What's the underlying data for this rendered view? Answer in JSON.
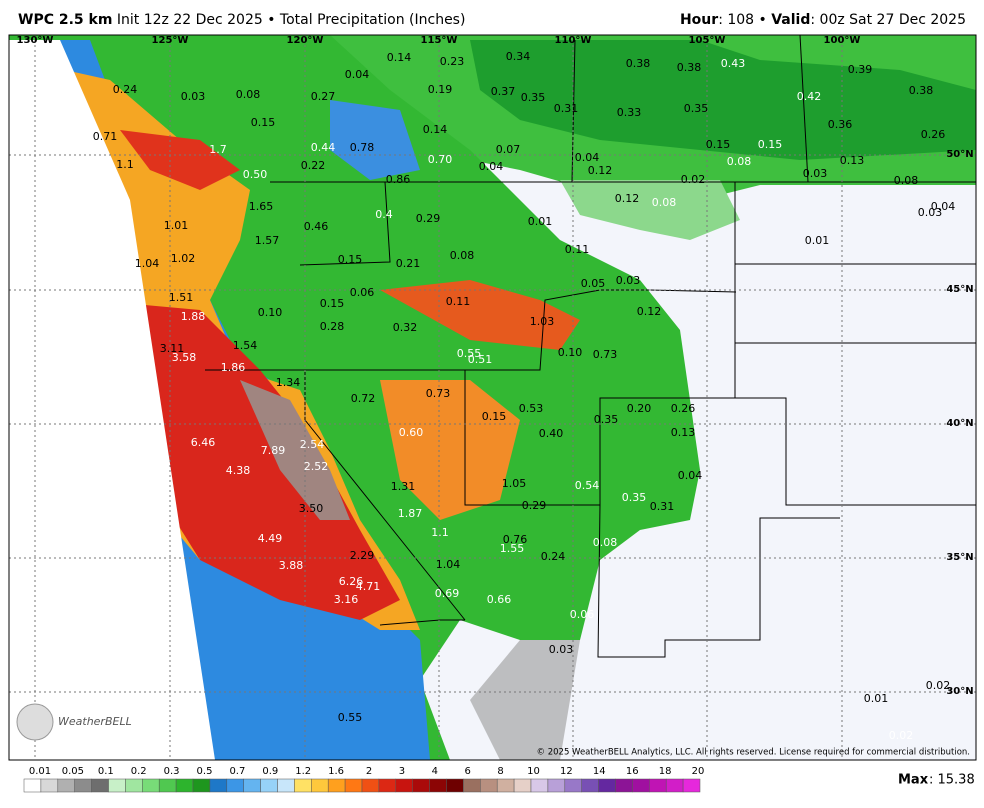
{
  "header": {
    "model": "WPC 2.5 km",
    "init": "Init 12z 22 Dec 2025 • Total Precipitation (Inches)",
    "hour_label": "Hour",
    "hour_value": ": 108 • ",
    "valid_label": "Valid",
    "valid_value": ": 00z Sat 27 Dec 2025"
  },
  "map": {
    "longitudes": [
      "130°W",
      "125°W",
      "120°W",
      "115°W",
      "110°W",
      "105°W",
      "100°W"
    ],
    "latitudes": [
      "50°N",
      "45°N",
      "40°N",
      "35°N",
      "30°N"
    ],
    "point_values": [
      "0.24",
      "0.03",
      "0.08",
      "0.04",
      "0.14",
      "0.23",
      "0.34",
      "0.38",
      "0.38",
      "0.43",
      "0.39",
      "0.27",
      "0.19",
      "0.37",
      "0.35",
      "0.31",
      "0.33",
      "0.35",
      "0.42",
      "0.38",
      "0.15",
      "0.14",
      "0.36",
      "0.26",
      "0.71",
      "1.7",
      "0.44",
      "0.78",
      "0.07",
      "0.15",
      "0.15",
      "0.70",
      "0.04",
      "0.13",
      "1.1",
      "0.22",
      "0.04",
      "0.12",
      "0.08",
      "0.50",
      "0.03",
      "0.86",
      "0.02",
      "0.08",
      "0.12",
      "0.08",
      "0.04",
      "0.03",
      "1.65",
      "0.4",
      "0.29",
      "1.01",
      "0.46",
      "0.01",
      "1.57",
      "0.01",
      "0.11",
      "0.08",
      "1.04",
      "1.02",
      "0.15",
      "0.21",
      "0.05",
      "0.03",
      "1.51",
      "0.06",
      "0.11",
      "0.15",
      "0.10",
      "0.12",
      "1.88",
      "0.28",
      "0.32",
      "1.03",
      "3.11",
      "1.54",
      "0.10",
      "0.73",
      "3.58",
      "0.55",
      "0.51",
      "1.86",
      "1.34",
      "0.72",
      "0.73",
      "0.20",
      "0.26",
      "0.15",
      "0.53",
      "0.35",
      "6.46",
      "7.89",
      "2.54",
      "0.60",
      "0.40",
      "0.13",
      "4.38",
      "2.52",
      "0.04",
      "1.31",
      "1.05",
      "0.54",
      "0.35",
      "0.29",
      "0.31",
      "3.50",
      "1.87",
      "1.1",
      "4.49",
      "0.76",
      "1.55",
      "0.08",
      "2.29",
      "0.24",
      "3.88",
      "1.04",
      "6.26",
      "4.71",
      "3.16",
      "0.69",
      "0.66",
      "0.06",
      "0.03",
      "0.02",
      "0.01",
      "0.55",
      "0.02"
    ]
  },
  "copyright": "© 2025 WeatherBELL Analytics, LLC. All rights reserved. License required for commercial distribution.",
  "logo": "WeatherBELL",
  "colorbar": {
    "labels": [
      "0.01",
      "0.05",
      "0.1",
      "0.2",
      "0.3",
      "0.5",
      "0.7",
      "0.9",
      "1.2",
      "1.6",
      "2",
      "3",
      "4",
      "6",
      "8",
      "10",
      "12",
      "14",
      "16",
      "18",
      "20"
    ]
  },
  "max": {
    "label": "Max",
    "value": ": 15.38"
  }
}
